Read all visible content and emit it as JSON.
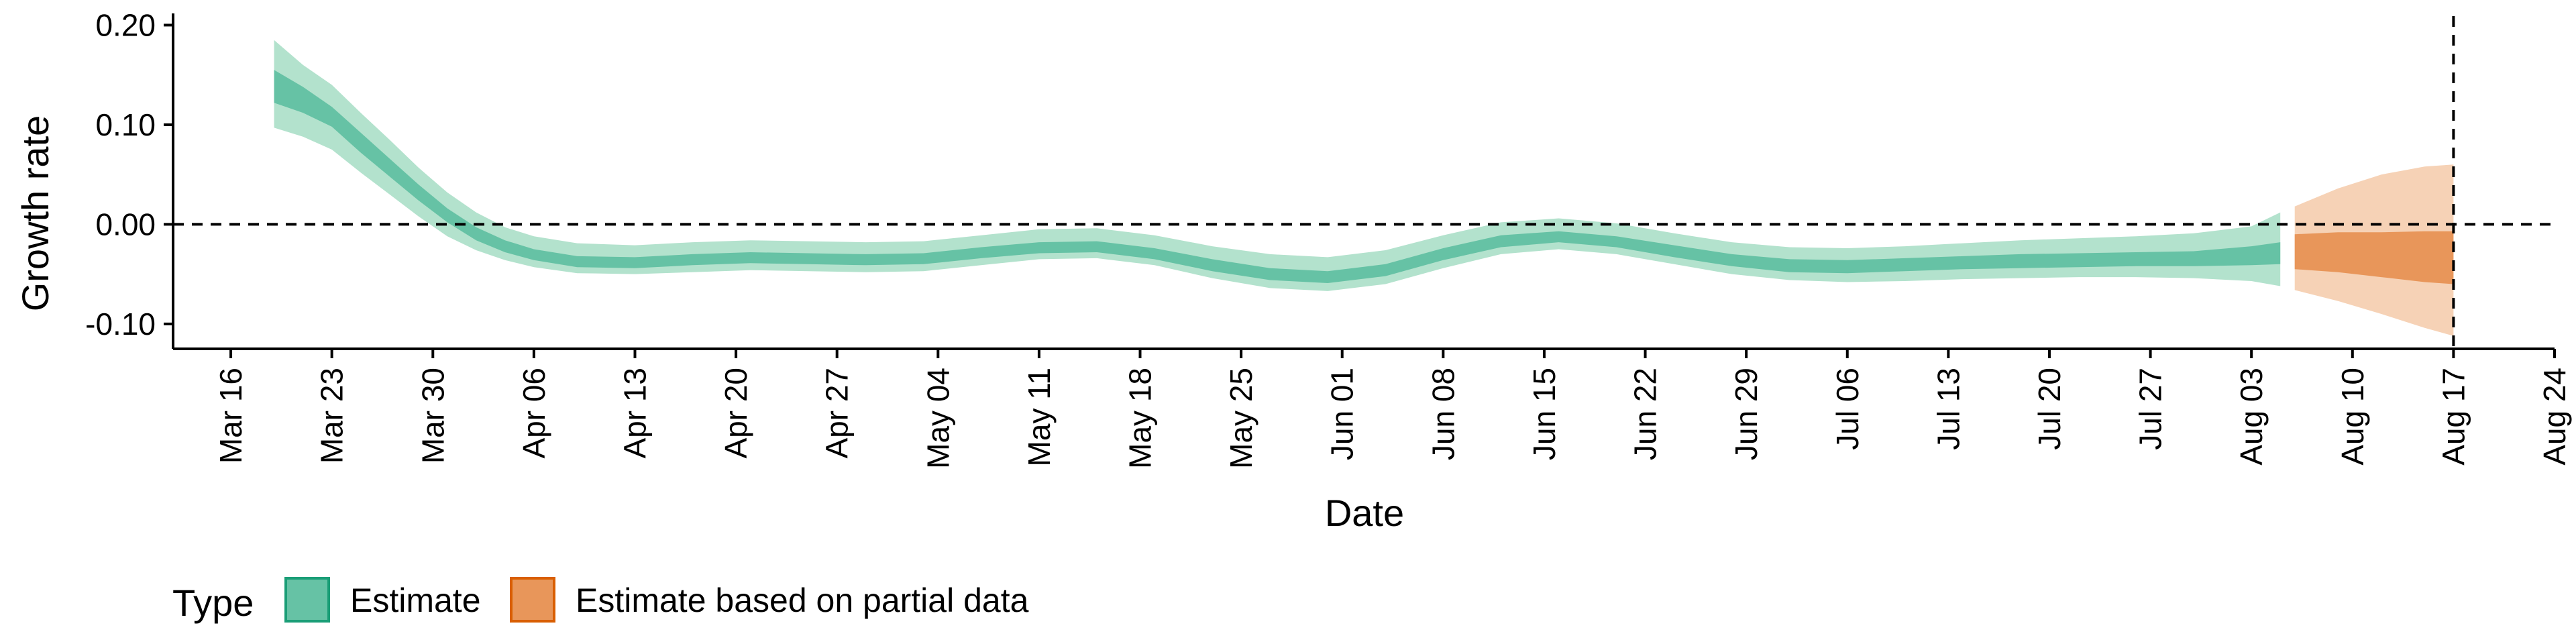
{
  "chart_data": {
    "type": "area",
    "title": "",
    "xlabel": "Date",
    "ylabel": "Growth rate",
    "ylim": [
      -0.125,
      0.205
    ],
    "y_ticks": [
      {
        "value": 0.2,
        "label": "0.20"
      },
      {
        "value": 0.1,
        "label": "0.10"
      },
      {
        "value": 0.0,
        "label": "0.00"
      },
      {
        "value": -0.1,
        "label": "-0.10"
      }
    ],
    "xlim": [
      "2020-03-12",
      "2020-08-24"
    ],
    "x_ticks": [
      {
        "date": "2020-03-16",
        "label": "Mar 16"
      },
      {
        "date": "2020-03-23",
        "label": "Mar 23"
      },
      {
        "date": "2020-03-30",
        "label": "Mar 30"
      },
      {
        "date": "2020-04-06",
        "label": "Apr 06"
      },
      {
        "date": "2020-04-13",
        "label": "Apr 13"
      },
      {
        "date": "2020-04-20",
        "label": "Apr 20"
      },
      {
        "date": "2020-04-27",
        "label": "Apr 27"
      },
      {
        "date": "2020-05-04",
        "label": "May 04"
      },
      {
        "date": "2020-05-11",
        "label": "May 11"
      },
      {
        "date": "2020-05-18",
        "label": "May 18"
      },
      {
        "date": "2020-05-25",
        "label": "May 25"
      },
      {
        "date": "2020-06-01",
        "label": "Jun 01"
      },
      {
        "date": "2020-06-08",
        "label": "Jun 08"
      },
      {
        "date": "2020-06-15",
        "label": "Jun 15"
      },
      {
        "date": "2020-06-22",
        "label": "Jun 22"
      },
      {
        "date": "2020-06-29",
        "label": "Jun 29"
      },
      {
        "date": "2020-07-06",
        "label": "Jul 06"
      },
      {
        "date": "2020-07-13",
        "label": "Jul 13"
      },
      {
        "date": "2020-07-20",
        "label": "Jul 20"
      },
      {
        "date": "2020-07-27",
        "label": "Jul 27"
      },
      {
        "date": "2020-08-03",
        "label": "Aug 03"
      },
      {
        "date": "2020-08-10",
        "label": "Aug 10"
      },
      {
        "date": "2020-08-17",
        "label": "Aug 17"
      },
      {
        "date": "2020-08-24",
        "label": "Aug 24"
      }
    ],
    "reference_lines": [
      {
        "axis": "y",
        "value": 0.0,
        "style": "dashed"
      },
      {
        "axis": "x",
        "value": "2020-08-17",
        "style": "dashed"
      }
    ],
    "grid": false,
    "legend": {
      "title": "Type",
      "position": "bottom-left",
      "entries": [
        {
          "label": "Estimate",
          "color": "#66C2A5",
          "border": "#1B9E77"
        },
        {
          "label": "Estimate based on partial data",
          "color": "#E8965A",
          "border": "#D95F02"
        }
      ]
    },
    "series": [
      {
        "name": "Estimate",
        "inner_color": "#66C2A5",
        "outer_color": "#B3E2CD",
        "points": [
          {
            "x": "2020-03-19",
            "outer": [
              0.097,
              0.185
            ],
            "inner": [
              0.122,
              0.155
            ]
          },
          {
            "x": "2020-03-21",
            "outer": [
              0.088,
              0.16
            ],
            "inner": [
              0.112,
              0.138
            ]
          },
          {
            "x": "2020-03-23",
            "outer": [
              0.075,
              0.14
            ],
            "inner": [
              0.098,
              0.118
            ]
          },
          {
            "x": "2020-03-25",
            "outer": [
              0.052,
              0.112
            ],
            "inner": [
              0.072,
              0.092
            ]
          },
          {
            "x": "2020-03-27",
            "outer": [
              0.03,
              0.085
            ],
            "inner": [
              0.048,
              0.066
            ]
          },
          {
            "x": "2020-03-29",
            "outer": [
              0.008,
              0.057
            ],
            "inner": [
              0.024,
              0.04
            ]
          },
          {
            "x": "2020-03-31",
            "outer": [
              -0.012,
              0.032
            ],
            "inner": [
              0.002,
              0.016
            ]
          },
          {
            "x": "2020-04-02",
            "outer": [
              -0.026,
              0.012
            ],
            "inner": [
              -0.016,
              -0.003
            ]
          },
          {
            "x": "2020-04-04",
            "outer": [
              -0.036,
              -0.003
            ],
            "inner": [
              -0.028,
              -0.016
            ]
          },
          {
            "x": "2020-04-06",
            "outer": [
              -0.043,
              -0.012
            ],
            "inner": [
              -0.036,
              -0.025
            ]
          },
          {
            "x": "2020-04-09",
            "outer": [
              -0.049,
              -0.019
            ],
            "inner": [
              -0.043,
              -0.032
            ]
          },
          {
            "x": "2020-04-13",
            "outer": [
              -0.05,
              -0.021
            ],
            "inner": [
              -0.044,
              -0.033
            ]
          },
          {
            "x": "2020-04-17",
            "outer": [
              -0.048,
              -0.018
            ],
            "inner": [
              -0.041,
              -0.03
            ]
          },
          {
            "x": "2020-04-21",
            "outer": [
              -0.046,
              -0.016
            ],
            "inner": [
              -0.039,
              -0.028
            ]
          },
          {
            "x": "2020-04-25",
            "outer": [
              -0.047,
              -0.017
            ],
            "inner": [
              -0.04,
              -0.029
            ]
          },
          {
            "x": "2020-04-29",
            "outer": [
              -0.048,
              -0.018
            ],
            "inner": [
              -0.041,
              -0.03
            ]
          },
          {
            "x": "2020-05-03",
            "outer": [
              -0.047,
              -0.017
            ],
            "inner": [
              -0.04,
              -0.029
            ]
          },
          {
            "x": "2020-05-07",
            "outer": [
              -0.041,
              -0.011
            ],
            "inner": [
              -0.034,
              -0.023
            ]
          },
          {
            "x": "2020-05-11",
            "outer": [
              -0.035,
              -0.005
            ],
            "inner": [
              -0.029,
              -0.018
            ]
          },
          {
            "x": "2020-05-15",
            "outer": [
              -0.034,
              -0.004
            ],
            "inner": [
              -0.028,
              -0.017
            ]
          },
          {
            "x": "2020-05-19",
            "outer": [
              -0.041,
              -0.011
            ],
            "inner": [
              -0.035,
              -0.024
            ]
          },
          {
            "x": "2020-05-23",
            "outer": [
              -0.054,
              -0.022
            ],
            "inner": [
              -0.047,
              -0.035
            ]
          },
          {
            "x": "2020-05-27",
            "outer": [
              -0.064,
              -0.03
            ],
            "inner": [
              -0.056,
              -0.044
            ]
          },
          {
            "x": "2020-05-31",
            "outer": [
              -0.067,
              -0.033
            ],
            "inner": [
              -0.059,
              -0.047
            ]
          },
          {
            "x": "2020-06-04",
            "outer": [
              -0.06,
              -0.026
            ],
            "inner": [
              -0.052,
              -0.04
            ]
          },
          {
            "x": "2020-06-08",
            "outer": [
              -0.044,
              -0.011
            ],
            "inner": [
              -0.036,
              -0.024
            ]
          },
          {
            "x": "2020-06-12",
            "outer": [
              -0.03,
              0.002
            ],
            "inner": [
              -0.023,
              -0.011
            ]
          },
          {
            "x": "2020-06-16",
            "outer": [
              -0.025,
              0.006
            ],
            "inner": [
              -0.018,
              -0.007
            ]
          },
          {
            "x": "2020-06-20",
            "outer": [
              -0.03,
              0.001
            ],
            "inner": [
              -0.023,
              -0.012
            ]
          },
          {
            "x": "2020-06-24",
            "outer": [
              -0.04,
              -0.009
            ],
            "inner": [
              -0.033,
              -0.021
            ]
          },
          {
            "x": "2020-06-28",
            "outer": [
              -0.05,
              -0.018
            ],
            "inner": [
              -0.042,
              -0.03
            ]
          },
          {
            "x": "2020-07-02",
            "outer": [
              -0.056,
              -0.023
            ],
            "inner": [
              -0.048,
              -0.035
            ]
          },
          {
            "x": "2020-07-06",
            "outer": [
              -0.058,
              -0.024
            ],
            "inner": [
              -0.049,
              -0.036
            ]
          },
          {
            "x": "2020-07-10",
            "outer": [
              -0.057,
              -0.022
            ],
            "inner": [
              -0.047,
              -0.034
            ]
          },
          {
            "x": "2020-07-14",
            "outer": [
              -0.055,
              -0.019
            ],
            "inner": [
              -0.045,
              -0.032
            ]
          },
          {
            "x": "2020-07-18",
            "outer": [
              -0.054,
              -0.016
            ],
            "inner": [
              -0.044,
              -0.03
            ]
          },
          {
            "x": "2020-07-22",
            "outer": [
              -0.053,
              -0.014
            ],
            "inner": [
              -0.043,
              -0.029
            ]
          },
          {
            "x": "2020-07-26",
            "outer": [
              -0.053,
              -0.012
            ],
            "inner": [
              -0.042,
              -0.028
            ]
          },
          {
            "x": "2020-07-30",
            "outer": [
              -0.054,
              -0.009
            ],
            "inner": [
              -0.042,
              -0.027
            ]
          },
          {
            "x": "2020-08-03",
            "outer": [
              -0.057,
              -0.002
            ],
            "inner": [
              -0.041,
              -0.022
            ]
          },
          {
            "x": "2020-08-05",
            "outer": [
              -0.062,
              0.012
            ],
            "inner": [
              -0.04,
              -0.018
            ]
          }
        ]
      },
      {
        "name": "Estimate based on partial data",
        "inner_color": "#E8965A",
        "outer_color": "#F6D2B6",
        "points": [
          {
            "x": "2020-08-06",
            "outer": [
              -0.066,
              0.018
            ],
            "inner": [
              -0.045,
              -0.01
            ]
          },
          {
            "x": "2020-08-09",
            "outer": [
              -0.077,
              0.036
            ],
            "inner": [
              -0.048,
              -0.008
            ]
          },
          {
            "x": "2020-08-12",
            "outer": [
              -0.09,
              0.05
            ],
            "inner": [
              -0.053,
              -0.008
            ]
          },
          {
            "x": "2020-08-15",
            "outer": [
              -0.104,
              0.058
            ],
            "inner": [
              -0.058,
              -0.007
            ]
          },
          {
            "x": "2020-08-17",
            "outer": [
              -0.112,
              0.06
            ],
            "inner": [
              -0.06,
              -0.007
            ]
          }
        ]
      }
    ]
  }
}
